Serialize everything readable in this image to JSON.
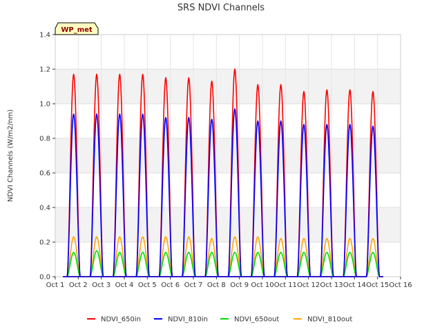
{
  "chart_data": {
    "type": "line",
    "title": "SRS NDVI Channels",
    "ylabel": "NDVI Channels (W/m2/nm)",
    "xlabel": "",
    "badge": "WP_met",
    "ylim": [
      0,
      1.4
    ],
    "xlim": [
      1,
      16
    ],
    "yticks": [
      0.0,
      0.2,
      0.4,
      0.6,
      0.8,
      1.0,
      1.2,
      1.4
    ],
    "ytick_labels": [
      "0.0",
      "0.2",
      "0.4",
      "0.6",
      "0.8",
      "1.0",
      "1.2",
      "1.4"
    ],
    "xticks": [
      1,
      2,
      3,
      4,
      5,
      6,
      7,
      8,
      9,
      10,
      11,
      12,
      13,
      14,
      15,
      16
    ],
    "xtick_labels": [
      "Oct 1",
      "Oct 2",
      "Oct 3",
      "Oct 4",
      "Oct 5",
      "Oct 6",
      "Oct 7",
      "Oct 8",
      "Oct 9",
      "Oct 10",
      "Oct 11",
      "Oct 12",
      "Oct 13",
      "Oct 14",
      "Oct 15",
      "Oct 16"
    ],
    "grid": true,
    "legend_position": "bottom",
    "day_peak_x": [
      1.8,
      2.8,
      3.8,
      4.8,
      5.8,
      6.8,
      7.8,
      8.8,
      9.8,
      10.8,
      11.8,
      12.8,
      13.8,
      14.8
    ],
    "series": [
      {
        "name": "NDVI_650in",
        "color": "#ff0000",
        "peaks": [
          1.17,
          1.17,
          1.17,
          1.17,
          1.15,
          1.15,
          1.13,
          1.2,
          1.11,
          1.11,
          1.07,
          1.08,
          1.08,
          1.07
        ]
      },
      {
        "name": "NDVI_810in",
        "color": "#0000ff",
        "peaks": [
          0.94,
          0.94,
          0.94,
          0.94,
          0.92,
          0.92,
          0.91,
          0.97,
          0.9,
          0.9,
          0.88,
          0.88,
          0.88,
          0.87
        ]
      },
      {
        "name": "NDVI_650out",
        "color": "#00dd00",
        "peaks": [
          0.14,
          0.15,
          0.14,
          0.14,
          0.14,
          0.14,
          0.14,
          0.14,
          0.14,
          0.14,
          0.14,
          0.14,
          0.14,
          0.14
        ]
      },
      {
        "name": "NDVI_810out",
        "color": "#ffa500",
        "peaks": [
          0.23,
          0.23,
          0.23,
          0.23,
          0.23,
          0.23,
          0.22,
          0.23,
          0.23,
          0.22,
          0.22,
          0.22,
          0.22,
          0.22
        ]
      }
    ]
  }
}
